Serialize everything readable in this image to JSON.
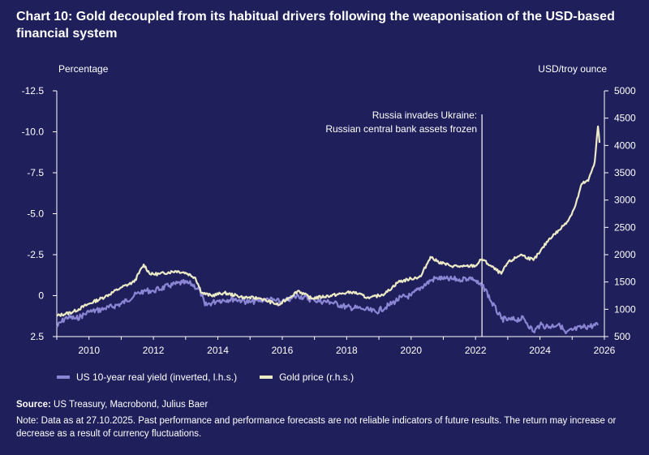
{
  "title": "Chart 10: Gold decoupled from its habitual drivers following the weaponisation of the USD-based financial system",
  "colors": {
    "background": "#1f1f5c",
    "yield": "#8b86d4",
    "gold": "#ecebc6",
    "axis": "#ffffff"
  },
  "chart_data": {
    "type": "line",
    "left_axis": {
      "title": "Percentage",
      "inverted": true,
      "range": [
        2.5,
        -12.5
      ],
      "ticks": [
        -12.5,
        -10.0,
        -7.5,
        -5.0,
        -2.5,
        0,
        2.5
      ],
      "tick_labels": [
        "-12.5",
        "-10.0",
        "-7.5",
        "-5.0",
        "-2.5",
        "0",
        "2.5"
      ]
    },
    "right_axis": {
      "title": "USD/troy ounce",
      "range": [
        500,
        5000
      ],
      "ticks": [
        500,
        1000,
        1500,
        2000,
        2500,
        3000,
        3500,
        4000,
        4500,
        5000
      ],
      "tick_labels": [
        "500",
        "1000",
        "1500",
        "2000",
        "2500",
        "3000",
        "3500",
        "4000",
        "4500",
        "5000"
      ]
    },
    "x_axis": {
      "range": [
        2009,
        2026
      ],
      "ticks": [
        2010,
        2012,
        2014,
        2016,
        2018,
        2020,
        2022,
        2024,
        2026
      ],
      "tick_labels": [
        "2010",
        "2012",
        "2014",
        "2016",
        "2018",
        "2020",
        "2022",
        "2024",
        "2026"
      ]
    },
    "series": [
      {
        "name": "US 10-year real yield (inverted, l.h.s.)",
        "axis": "left",
        "x": [
          2009.0,
          2009.3,
          2009.6,
          2010.0,
          2010.5,
          2011.0,
          2011.4,
          2011.7,
          2012.0,
          2012.5,
          2012.9,
          2013.2,
          2013.45,
          2013.6,
          2014.0,
          2014.5,
          2015.0,
          2015.5,
          2016.0,
          2016.5,
          2017.0,
          2017.5,
          2018.0,
          2018.5,
          2018.9,
          2019.3,
          2019.7,
          2020.0,
          2020.3,
          2020.6,
          2020.8,
          2021.0,
          2021.5,
          2021.9,
          2022.1,
          2022.3,
          2022.5,
          2022.8,
          2023.0,
          2023.5,
          2023.8,
          2024.0,
          2024.3,
          2024.6,
          2024.8,
          2025.0,
          2025.4,
          2025.8
        ],
        "values": [
          1.9,
          1.3,
          1.4,
          1.0,
          0.8,
          0.5,
          0.0,
          -0.3,
          -0.3,
          -0.6,
          -0.8,
          -0.7,
          -0.3,
          0.6,
          0.3,
          0.2,
          0.4,
          0.2,
          0.4,
          0.0,
          0.3,
          0.4,
          0.7,
          0.8,
          1.0,
          0.6,
          0.1,
          0.0,
          -0.5,
          -0.9,
          -1.1,
          -1.0,
          -1.0,
          -1.1,
          -0.7,
          -0.4,
          0.4,
          1.4,
          1.5,
          1.4,
          2.2,
          1.8,
          1.9,
          1.7,
          2.3,
          2.1,
          1.9,
          1.8
        ]
      },
      {
        "name": "Gold price (r.h.s.)",
        "axis": "right",
        "x": [
          2009.0,
          2009.5,
          2010.0,
          2010.5,
          2011.0,
          2011.4,
          2011.7,
          2011.9,
          2012.2,
          2012.7,
          2013.0,
          2013.3,
          2013.5,
          2013.8,
          2014.2,
          2014.8,
          2015.3,
          2015.9,
          2016.5,
          2016.9,
          2017.5,
          2018.2,
          2018.7,
          2019.2,
          2019.6,
          2020.0,
          2020.3,
          2020.6,
          2020.8,
          2021.2,
          2021.6,
          2022.0,
          2022.2,
          2022.5,
          2022.8,
          2023.0,
          2023.4,
          2023.8,
          2024.0,
          2024.3,
          2024.6,
          2024.9,
          2025.1,
          2025.3,
          2025.5,
          2025.7,
          2025.8,
          2025.85
        ],
        "values": [
          880,
          950,
          1100,
          1230,
          1400,
          1500,
          1820,
          1640,
          1650,
          1700,
          1670,
          1580,
          1300,
          1250,
          1300,
          1220,
          1200,
          1080,
          1340,
          1200,
          1250,
          1320,
          1200,
          1290,
          1500,
          1560,
          1600,
          1960,
          1880,
          1800,
          1780,
          1800,
          1920,
          1780,
          1650,
          1850,
          2000,
          1900,
          2050,
          2300,
          2450,
          2650,
          2900,
          3300,
          3350,
          3700,
          4350,
          4050
        ]
      }
    ],
    "annotation": {
      "x": 2022.2,
      "text_line1": "Russia invades Ukraine:",
      "text_line2": "Russian central bank assets frozen"
    }
  },
  "legend": {
    "yield_label": "US 10-year real yield (inverted, l.h.s.)",
    "gold_label": "Gold price (r.h.s.)"
  },
  "source": {
    "label": "Source:",
    "text": " US Treasury, Macrobond, Julius Baer"
  },
  "note": "Note: Data as at 27.10.2025. Past performance and performance forecasts are not reliable indicators of future results. The return may increase or decrease as a result of currency fluctuations."
}
